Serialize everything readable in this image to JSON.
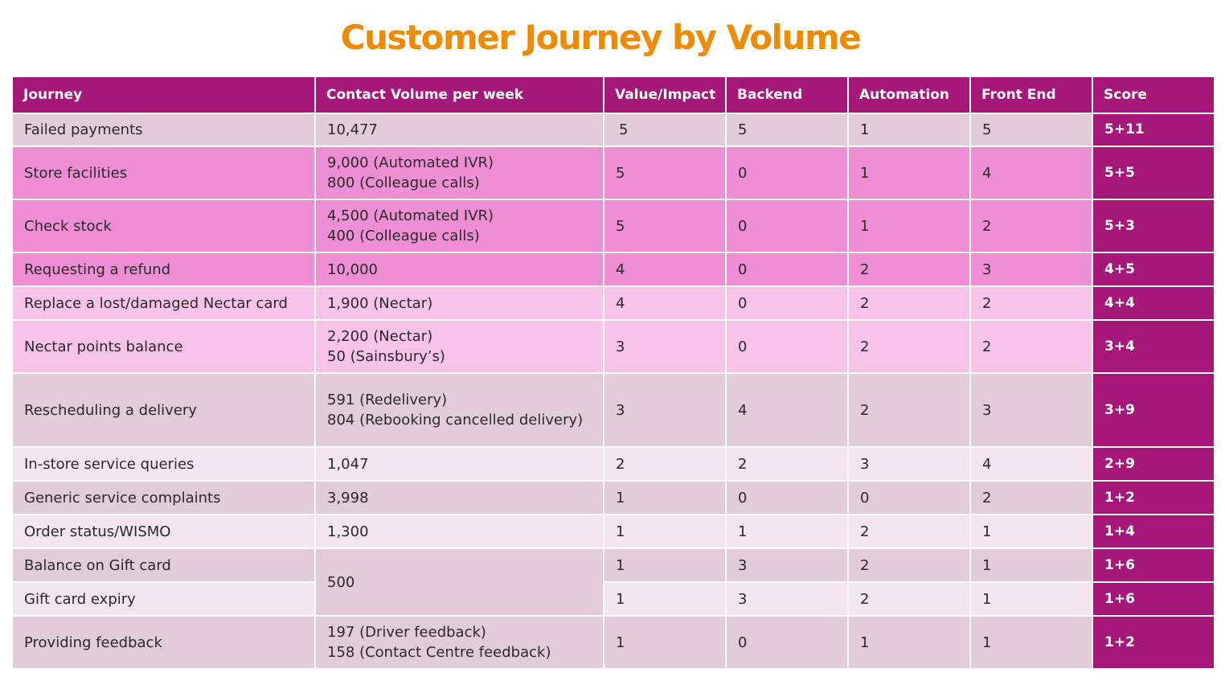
{
  "title": "Customer Journey by Volume",
  "colors": {
    "title": "#F08A00",
    "header_bg": "#A6177A",
    "score_bg": "#A6177A",
    "row_grey": "#E2CCD8",
    "row_pink": "#EE8ED4",
    "row_light_pink": "#F8C3E9",
    "row_pale": "#F3E6EE"
  },
  "headers": {
    "journey": "Journey",
    "volume": "Contact Volume per week",
    "value": "Value/Impact",
    "backend": "Backend",
    "automation": "Automation",
    "frontend": "Front End",
    "score": "Score"
  },
  "rows": [
    {
      "journey": "Failed payments",
      "volume1": "10,477",
      "volume2": "",
      "value": "5",
      "backend": "5",
      "automation": "1",
      "frontend": "5",
      "score": "5+11"
    },
    {
      "journey": "Store facilities",
      "volume1": "9,000 (Automated IVR)",
      "volume2": "800 (Colleague calls)",
      "value": "5",
      "backend": "0",
      "automation": "1",
      "frontend": "4",
      "score": "5+5"
    },
    {
      "journey": "Check stock",
      "volume1": "4,500 (Automated IVR)",
      "volume2": "400 (Colleague calls)",
      "value": "5",
      "backend": "0",
      "automation": "1",
      "frontend": "2",
      "score": "5+3"
    },
    {
      "journey": "Requesting a refund",
      "volume1": "10,000",
      "volume2": "",
      "value": "4",
      "backend": "0",
      "automation": "2",
      "frontend": "3",
      "score": "4+5"
    },
    {
      "journey": "Replace a lost/damaged Nectar card",
      "volume1": "1,900 (Nectar)",
      "volume2": "",
      "value": "4",
      "backend": "0",
      "automation": "2",
      "frontend": "2",
      "score": "4+4"
    },
    {
      "journey": "Nectar points balance",
      "volume1": "2,200 (Nectar)",
      "volume2": "50 (Sainsbury’s)",
      "value": "3",
      "backend": "0",
      "automation": "2",
      "frontend": "2",
      "score": "3+4"
    },
    {
      "journey": "Rescheduling a delivery",
      "volume1": "591 (Redelivery)",
      "volume2": "804 (Rebooking cancelled delivery)",
      "value": "3",
      "backend": "4",
      "automation": "2",
      "frontend": "3",
      "score": "3+9"
    },
    {
      "journey": "In-store service queries",
      "volume1": "1,047",
      "volume2": "",
      "value": "2",
      "backend": "2",
      "automation": "3",
      "frontend": "4",
      "score": "2+9"
    },
    {
      "journey": "Generic service complaints",
      "volume1": "3,998",
      "volume2": "",
      "value": "1",
      "backend": "0",
      "automation": "0",
      "frontend": "2",
      "score": "1+2"
    },
    {
      "journey": "Order status/WISMO",
      "volume1": "1,300",
      "volume2": "",
      "value": "1",
      "backend": "1",
      "automation": "2",
      "frontend": "1",
      "score": "1+4"
    },
    {
      "journey": "Balance on Gift card",
      "volume1": "500",
      "volume2": "",
      "value": "1",
      "backend": "3",
      "automation": "2",
      "frontend": "1",
      "score": "1+6"
    },
    {
      "journey": "Gift card expiry",
      "volume1": "",
      "volume2": "",
      "value": "1",
      "backend": "3",
      "automation": "2",
      "frontend": "1",
      "score": "1+6"
    },
    {
      "journey": "Providing feedback",
      "volume1": "197 (Driver feedback)",
      "volume2": "158 (Contact Centre feedback)",
      "value": "1",
      "backend": "0",
      "automation": "1",
      "frontend": "1",
      "score": "1+2"
    }
  ]
}
